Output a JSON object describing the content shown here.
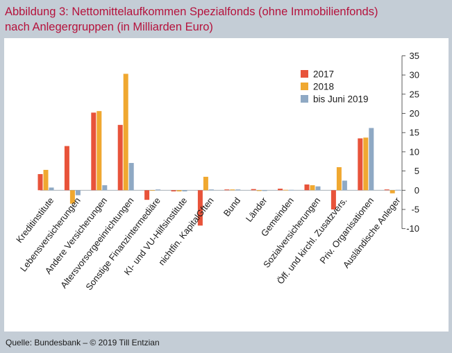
{
  "title_line1": "Abbildung 3: Nettomittelaufkommen Spezialfonds (ohne Immobilienfonds)",
  "title_line2": "nach Anlegergruppen (in Milliarden Euro)",
  "source": "Quelle: Bundesbank – © 2019 Till Entzian",
  "chart_data": {
    "type": "bar",
    "title": "Abbildung 3: Nettomittelaufkommen Spezialfonds (ohne Immobilienfonds) nach Anlegergruppen (in Milliarden Euro)",
    "categories": [
      "Kreditinstitute",
      "Lebensversicherungen",
      "Andere Versicherungen",
      "Altersvorsorgeeinrichtungen",
      "Sonstige Finanzintermediäre",
      "KI- und VU-Hilfsinstitute",
      "nichtfin. KapitalGften",
      "Bund",
      "Länder",
      "Gemeinden",
      "Sozialversicherungen",
      "Öff. und kirchl. Zusatzvers.",
      "Priv. Organisationen",
      "Ausländische Anleger"
    ],
    "series": [
      {
        "name": "2017",
        "color": "#e8533a",
        "values": [
          4.2,
          11.5,
          20.2,
          17.0,
          -2.5,
          -0.3,
          -9.2,
          0.2,
          0.3,
          0.4,
          1.5,
          -5.0,
          13.5,
          0.2
        ]
      },
      {
        "name": "2018",
        "color": "#f0a830",
        "values": [
          5.3,
          -3.5,
          20.6,
          30.3,
          0.0,
          -0.3,
          3.5,
          0.2,
          -0.2,
          0.1,
          1.3,
          6.0,
          13.7,
          -0.8
        ]
      },
      {
        "name": "bis Juni 2019",
        "color": "#8fa9c4",
        "values": [
          0.7,
          -1.3,
          1.3,
          7.1,
          0.2,
          -0.3,
          0.2,
          0.2,
          -0.2,
          0.1,
          1.0,
          2.5,
          16.2,
          0.1
        ]
      }
    ],
    "yticks": [
      35,
      30,
      25,
      20,
      15,
      10,
      5,
      0,
      -5,
      -10
    ],
    "ylim": [
      -10,
      35
    ],
    "xlabel": "",
    "ylabel": "",
    "grid": false,
    "legend_position": "top-right",
    "y_axis_side": "right"
  }
}
